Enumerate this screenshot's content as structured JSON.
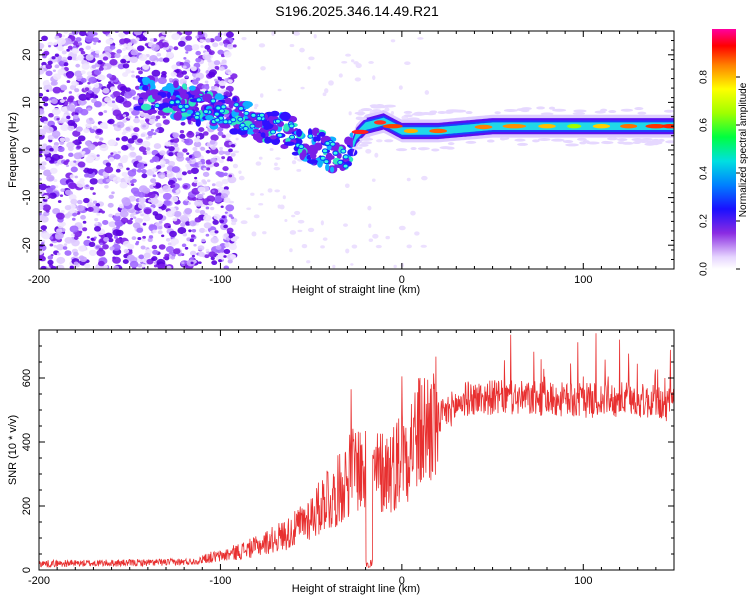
{
  "title": "S196.2025.346.14.49.R21",
  "chart_data": [
    {
      "type": "heatmap",
      "xlabel": "Height of straight line (km)",
      "ylabel": "Frequency (Hz)",
      "xlim": [
        -200,
        150
      ],
      "ylim": [
        -25,
        25
      ],
      "xticks": [
        -200,
        -100,
        0,
        100
      ],
      "yticks": [
        -20,
        -10,
        0,
        10,
        20
      ],
      "colorbar": {
        "label": "Normalized spectral amplitude",
        "range": [
          0,
          1
        ],
        "ticks": [
          "0.0",
          "0.2",
          "0.4",
          "0.6",
          "0.8"
        ]
      },
      "ridge": [
        {
          "x": -150,
          "y": 12
        },
        {
          "x": -130,
          "y": 11
        },
        {
          "x": -110,
          "y": 9
        },
        {
          "x": -90,
          "y": 7
        },
        {
          "x": -70,
          "y": 5
        },
        {
          "x": -50,
          "y": 1
        },
        {
          "x": -38,
          "y": -1
        },
        {
          "x": -30,
          "y": -2
        },
        {
          "x": -25,
          "y": 3
        },
        {
          "x": -20,
          "y": 5
        },
        {
          "x": -10,
          "y": 6
        },
        {
          "x": 0,
          "y": 4
        },
        {
          "x": 20,
          "y": 4
        },
        {
          "x": 50,
          "y": 5
        },
        {
          "x": 80,
          "y": 5
        },
        {
          "x": 100,
          "y": 5
        },
        {
          "x": 130,
          "y": 5
        },
        {
          "x": 150,
          "y": 5
        }
      ]
    },
    {
      "type": "line",
      "xlabel": "Height of straight line (km)",
      "ylabel": "SNR (10 * v/v)",
      "xlim": [
        -200,
        150
      ],
      "ylim": [
        0,
        750
      ],
      "xticks": [
        -200,
        -100,
        0,
        100
      ],
      "yticks": [
        0,
        200,
        400,
        600
      ],
      "color": "#e83030",
      "series": [
        {
          "name": "SNR",
          "trend": [
            {
              "x": -200,
              "y": 20
            },
            {
              "x": -150,
              "y": 22
            },
            {
              "x": -120,
              "y": 25
            },
            {
              "x": -100,
              "y": 35
            },
            {
              "x": -80,
              "y": 60
            },
            {
              "x": -60,
              "y": 100
            },
            {
              "x": -45,
              "y": 160
            },
            {
              "x": -35,
              "y": 250
            },
            {
              "x": -25,
              "y": 330
            },
            {
              "x": -20,
              "y": 300
            },
            {
              "x": -15,
              "y": 300
            },
            {
              "x": -5,
              "y": 320
            },
            {
              "x": 5,
              "y": 400
            },
            {
              "x": 15,
              "y": 450
            },
            {
              "x": 25,
              "y": 500
            },
            {
              "x": 35,
              "y": 540
            },
            {
              "x": 50,
              "y": 545
            },
            {
              "x": 75,
              "y": 540
            },
            {
              "x": 100,
              "y": 535
            },
            {
              "x": 125,
              "y": 540
            },
            {
              "x": 150,
              "y": 520
            }
          ],
          "peaks": [
            {
              "x": -28,
              "y": 565
            },
            {
              "x": 0,
              "y": 605
            },
            {
              "x": 60,
              "y": 735
            },
            {
              "x": 107,
              "y": 740
            },
            {
              "x": 145,
              "y": 600
            }
          ]
        }
      ]
    }
  ]
}
